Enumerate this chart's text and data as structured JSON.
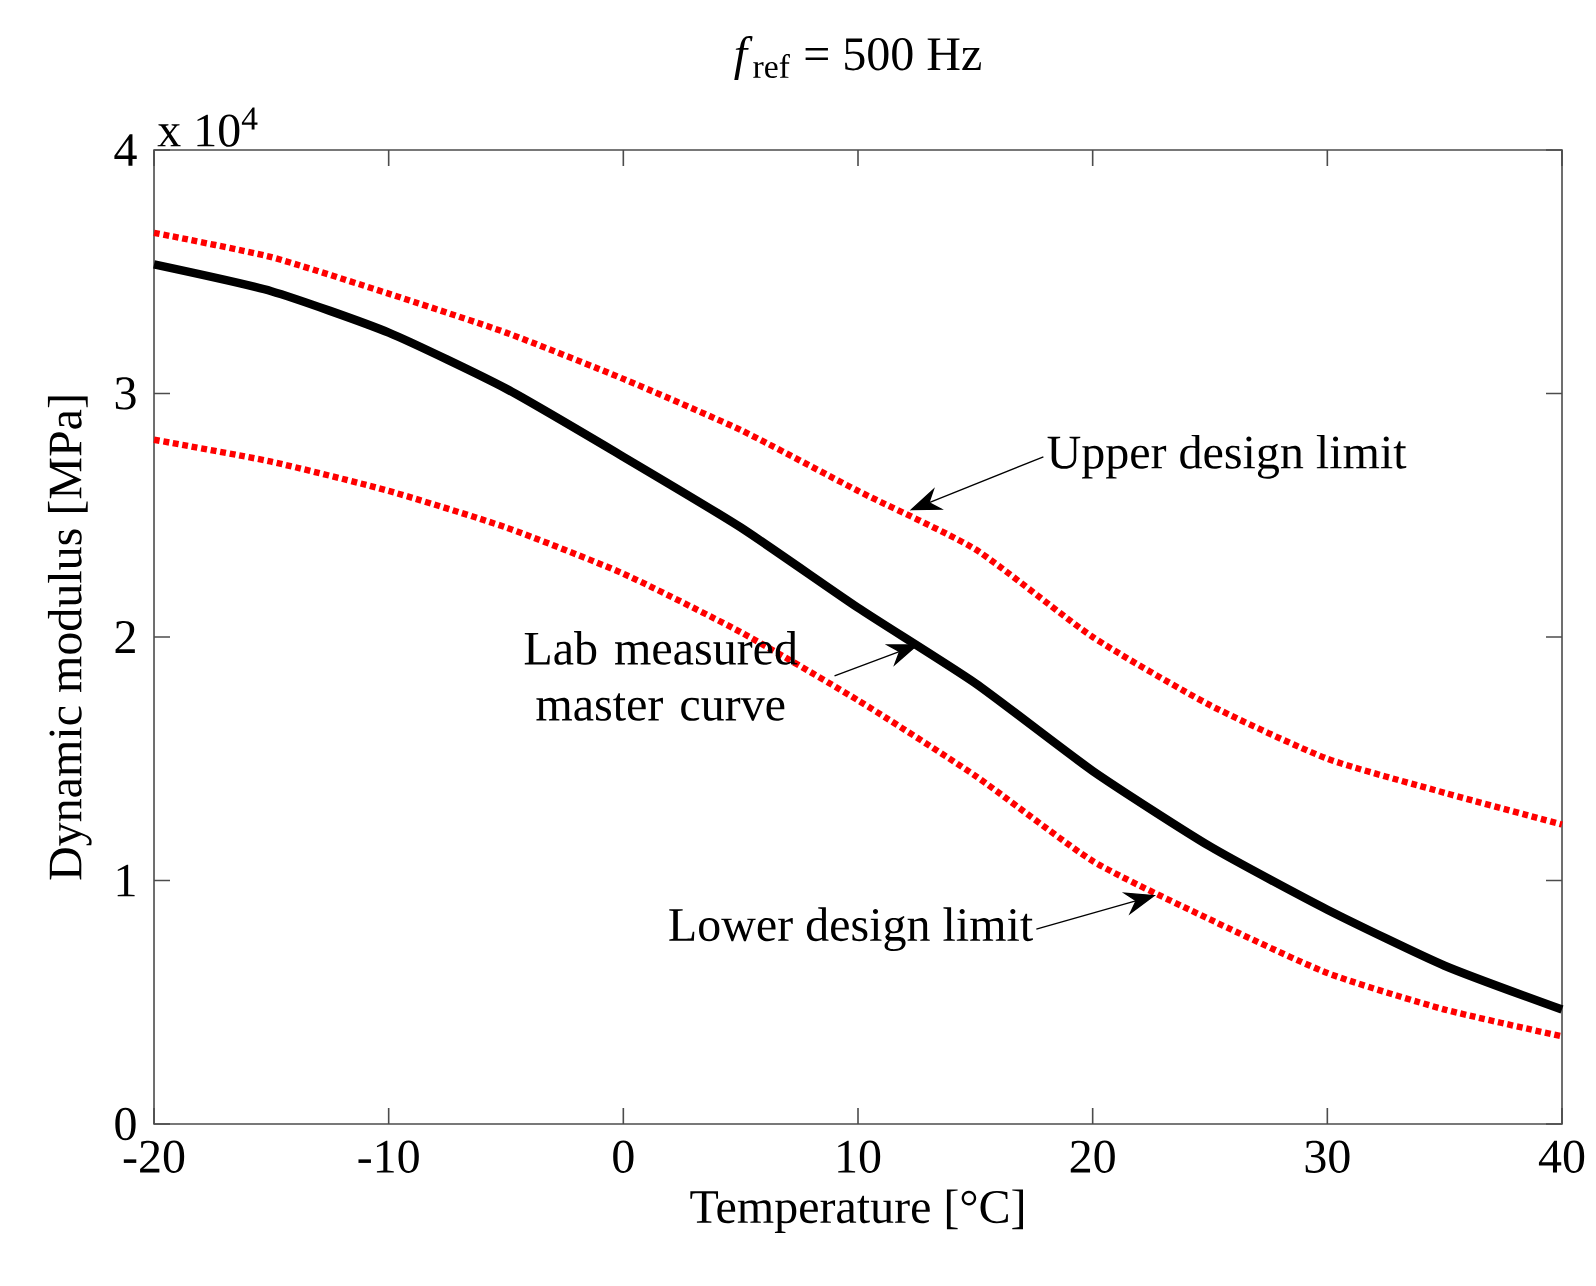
{
  "chart_data": {
    "type": "line",
    "title": "*f*$_{ref}$ = 500 Hz",
    "xlabel": "Temperature [°C]",
    "ylabel": "Dynamic modulus [MPa]",
    "annotations": [
      "x 10$^{4}$",
      {
        "text": "Upper design limit",
        "x": 12.2,
        "y": 2.52
      },
      {
        "text": "Lab measured master curve",
        "x": 12.6,
        "y": 1.97
      },
      {
        "text": "Lower design limit",
        "x": 22.7,
        "y": 0.94
      }
    ],
    "x": [
      -20,
      -15,
      -10,
      -5,
      0,
      5,
      10,
      15,
      20,
      25,
      30,
      35,
      40
    ],
    "series": [
      {
        "color": "#000000",
        "line_style": "solid",
        "values": [
          3.53,
          3.42,
          3.25,
          3.02,
          2.74,
          2.45,
          2.12,
          1.81,
          1.45,
          1.14,
          0.88,
          0.65,
          0.47
        ]
      },
      {
        "color": "#ff0000",
        "line_style": "dotted",
        "values": [
          3.66,
          3.56,
          3.41,
          3.25,
          3.06,
          2.85,
          2.6,
          2.36,
          2.0,
          1.72,
          1.5,
          1.36,
          1.23
        ]
      },
      {
        "color": "#ff0000",
        "line_style": "dotted",
        "values": [
          2.81,
          2.72,
          2.6,
          2.45,
          2.26,
          2.02,
          1.74,
          1.43,
          1.08,
          0.84,
          0.62,
          0.47,
          0.36
        ]
      }
    ],
    "xlim": [
      -20,
      40
    ],
    "xticks": [
      -20,
      -10,
      0,
      10,
      20,
      30,
      40
    ],
    "ylim": [
      0,
      4
    ],
    "yticks": [
      0,
      1,
      2,
      3,
      4
    ],
    "marker": "none"
  }
}
